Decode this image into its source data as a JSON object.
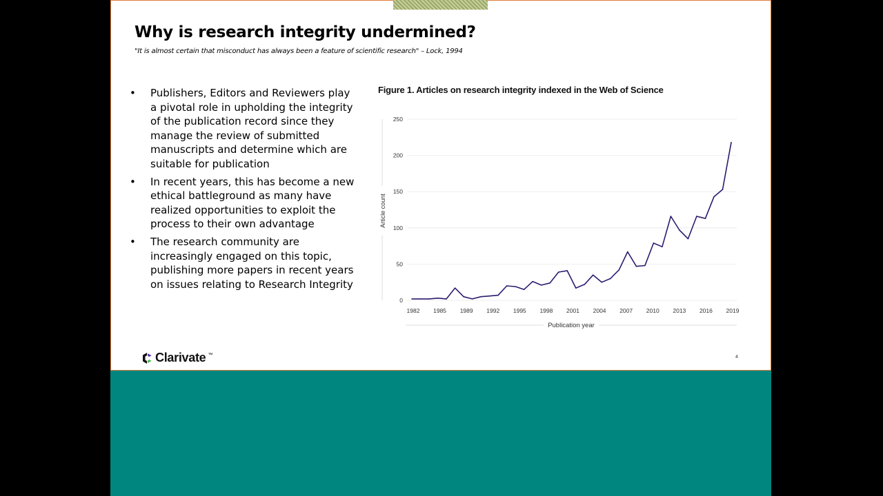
{
  "slide": {
    "title": "Why is research integrity undermined?",
    "quote": "\"It is almost certain that misconduct has always been a feature of scientific research\" – Lock, 1994",
    "bullets": [
      "Publishers, Editors and Reviewers play a pivotal role in upholding the integrity of the publication record since they manage the review of submitted manuscripts and determine which are suitable for publication",
      "In recent years, this has become a new ethical battleground as many have realized opportunities to exploit the process to their own advantage",
      "The research community are increasingly engaged on this topic, publishing more papers in recent years on issues relating to Research Integrity"
    ],
    "bullet_symbol": "•",
    "figure_title": "Figure 1. Articles on research integrity indexed in the Web of Science",
    "logo_text": "Clarivate",
    "logo_tm": "™",
    "page_number": "4"
  },
  "colors": {
    "line": "#2d1a6e",
    "teal_band": "#00857f",
    "slide_border": "#e07b39"
  },
  "chart_data": {
    "type": "line",
    "title": "Figure 1. Articles on research integrity indexed in the Web of Science",
    "xlabel": "Publication year",
    "ylabel": "Article count",
    "x": [
      1982,
      1983,
      1984,
      1985,
      1986,
      1987,
      1988,
      1989,
      1990,
      1991,
      1992,
      1993,
      1994,
      1995,
      1996,
      1997,
      1998,
      1999,
      2000,
      2001,
      2002,
      2003,
      2004,
      2005,
      2006,
      2007,
      2008,
      2009,
      2010,
      2011,
      2012,
      2013,
      2014,
      2015,
      2016,
      2017,
      2018,
      2019
    ],
    "values": [
      2,
      2,
      2,
      3,
      2,
      17,
      5,
      2,
      5,
      6,
      7,
      20,
      19,
      15,
      26,
      21,
      24,
      39,
      41,
      17,
      22,
      35,
      25,
      30,
      42,
      67,
      47,
      48,
      79,
      74,
      116,
      97,
      85,
      116,
      113,
      143,
      153,
      218
    ],
    "x_tick_labels": [
      "1982",
      "1985",
      "1989",
      "1992",
      "1995",
      "1998",
      "2001",
      "2004",
      "2007",
      "2010",
      "2013",
      "2016",
      "2019"
    ],
    "y_ticks": [
      0,
      50,
      100,
      150,
      200,
      250
    ],
    "ylim": [
      0,
      250
    ],
    "grid": true,
    "legend": "none"
  }
}
